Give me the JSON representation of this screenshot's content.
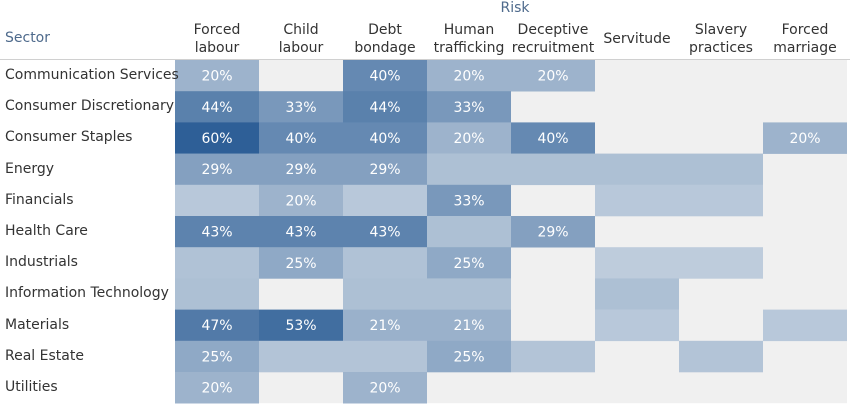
{
  "chart_data": {
    "type": "heatmap",
    "column_group_title": "Risk",
    "row_axis_title": "Sector",
    "columns": [
      "Forced\nlabour",
      "Child labour",
      "Debt\nbondage",
      "Human\ntrafficking",
      "Deceptive\nrecruitment",
      "Servitude",
      "Slavery\npractices",
      "Forced\nmarriage"
    ],
    "rows": [
      "Communication Services",
      "Consumer Discretionary",
      "Consumer Staples",
      "Energy",
      "Financials",
      "Health Care",
      "Industrials",
      "Information Technology",
      "Materials",
      "Real Estate",
      "Utilities"
    ],
    "values": [
      [
        20,
        null,
        40,
        20,
        20,
        null,
        null,
        null
      ],
      [
        44,
        33,
        44,
        33,
        null,
        null,
        null,
        null
      ],
      [
        60,
        40,
        40,
        20,
        40,
        null,
        null,
        20
      ],
      [
        29,
        29,
        29,
        14,
        14,
        14,
        14,
        null
      ],
      [
        10,
        20,
        10,
        33,
        null,
        10,
        10,
        null
      ],
      [
        43,
        43,
        43,
        14,
        29,
        null,
        null,
        null
      ],
      [
        13,
        25,
        13,
        25,
        null,
        8,
        8,
        null
      ],
      [
        14,
        null,
        14,
        14,
        null,
        14,
        null,
        null
      ],
      [
        47,
        53,
        21,
        21,
        null,
        10,
        null,
        10
      ],
      [
        25,
        12,
        12,
        25,
        12,
        null,
        12,
        null
      ],
      [
        20,
        null,
        20,
        null,
        null,
        null,
        null,
        null
      ]
    ],
    "labels": [
      [
        "20%",
        "",
        "40%",
        "20%",
        "20%",
        "",
        "",
        ""
      ],
      [
        "44%",
        "33%",
        "44%",
        "33%",
        "",
        "",
        "",
        ""
      ],
      [
        "60%",
        "40%",
        "40%",
        "20%",
        "40%",
        "",
        "",
        "20%"
      ],
      [
        "29%",
        "29%",
        "29%",
        "",
        "",
        "",
        "",
        ""
      ],
      [
        "",
        "20%",
        "",
        "33%",
        "",
        "",
        "",
        ""
      ],
      [
        "43%",
        "43%",
        "43%",
        "",
        "29%",
        "",
        "",
        ""
      ],
      [
        "",
        "25%",
        "",
        "25%",
        "",
        "",
        "",
        ""
      ],
      [
        "",
        "",
        "",
        "",
        "",
        "",
        "",
        ""
      ],
      [
        "47%",
        "53%",
        "21%",
        "21%",
        "",
        "",
        "",
        ""
      ],
      [
        "25%",
        "",
        "",
        "25%",
        "",
        "",
        "",
        ""
      ],
      [
        "20%",
        "",
        "20%",
        "",
        "",
        "",
        "",
        ""
      ]
    ],
    "color_low": "#d4dde7",
    "color_high": "#2e5f97",
    "empty_color": "#f0f0f0",
    "value_range": [
      0,
      60
    ]
  }
}
